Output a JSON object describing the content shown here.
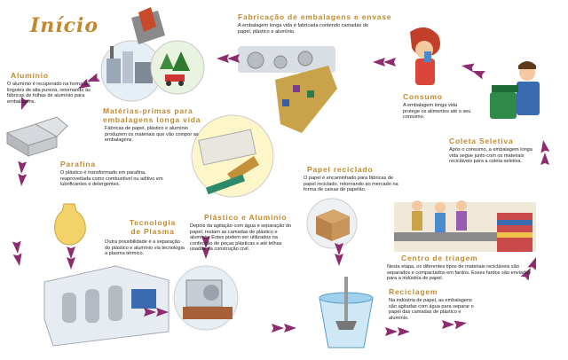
{
  "start": "Início",
  "steps": {
    "fabricacao": {
      "title": "Fabricação de embalagens e envase",
      "text": "A embalagem longa vida é fabricada contendo camadas de papel, plástico e alumínio."
    },
    "materias": {
      "title": "Matérias-primas para embalagens longa vida",
      "text": "Fábricas de papel, plástico e alumínio produzem os materiais que vão compor as embalagens."
    },
    "aluminio": {
      "title": "Alumínio",
      "text": "O alumínio é recuperado na forma de lingotes de alta pureza, retornando às fábricas de folhas de alumínio para embalagens."
    },
    "consumo": {
      "title": "Consumo",
      "text": "A embalagem longa vida protege os alimentos até o seu consumo."
    },
    "coleta": {
      "title": "Coleta Seletiva",
      "text": "Após o consumo, a embalagem longa vida segue junto com os materiais recicláveis para a coleta seletiva."
    },
    "parafina": {
      "title": "Parafina",
      "text": "O plástico é transformado em parafina, reaproveitada como combustível ou aditivo em lubrificantes e detergentes."
    },
    "papel": {
      "title": "Papel reciclado",
      "text": "O papel é encaminhado para fábricas de papel reciclado, retornando ao mercado na forma de caixas de papelão."
    },
    "plastico": {
      "title": "Plástico e Alumínio",
      "text": "Depois da agitação com água e separação do papel, restam as camadas de plástico e alumínio. Estes podem ser utilizados na confecção de peças plásticas e até telhas usadas na construção civil."
    },
    "plasma": {
      "title": "Tecnologia de Plasma",
      "text": "Outra possibilidade é a separação do plástico e alumínio via tecnologia a plasma térmico."
    },
    "triagem": {
      "title": "Centro de triagem",
      "text": "Nesta etapa, os diferentes tipos de materiais recicláveis são separados e compactados em fardos. Esses fardos são enviados para a indústria de papel."
    },
    "reciclagem": {
      "title": "Reciclagem",
      "text": "Na indústria de papel, as embalagens são agitadas com água para separar o papel das camadas de plástico e alumínio."
    }
  },
  "colors": {
    "arrow": "#8e2a6e",
    "title": "#c0892e"
  }
}
